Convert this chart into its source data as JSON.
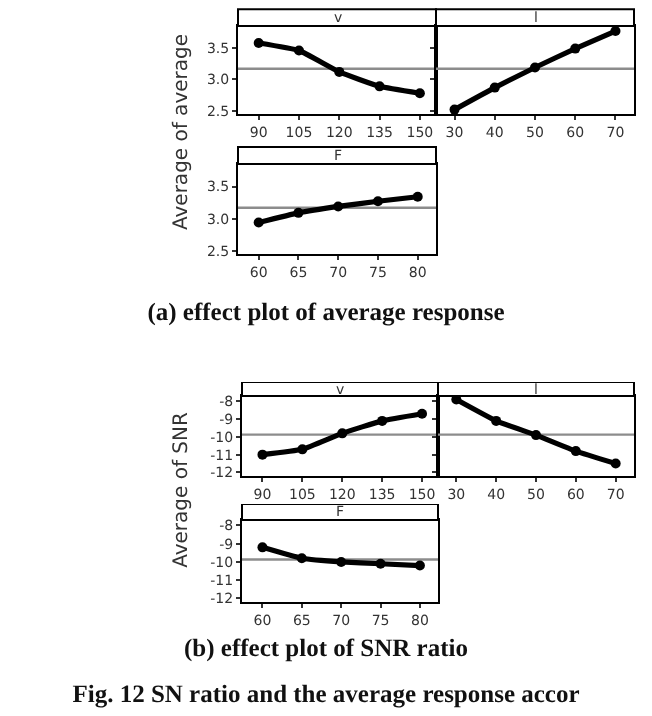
{
  "chart_data": [
    {
      "type": "line",
      "title": "v",
      "ylabel": "Average of average",
      "x": [
        90,
        105,
        120,
        135,
        150
      ],
      "values": [
        3.58,
        3.46,
        3.12,
        2.89,
        2.78
      ],
      "color": "#000000",
      "marker": "circle",
      "xlim": [
        82.3,
        156
      ],
      "xticks": [
        90,
        105,
        120,
        135,
        150
      ],
      "ylim": [
        2.45,
        3.85
      ],
      "yticks": [
        2.5,
        {
          "value": 3,
          "label": "3.0"
        },
        3.5
      ],
      "ref_lines": [
        {
          "axis": "y",
          "value": 3.17,
          "color": "#8c8c8c"
        }
      ]
    },
    {
      "type": "line",
      "title": "l",
      "x": [
        30,
        40,
        50,
        60,
        70
      ],
      "values": [
        2.52,
        2.87,
        3.19,
        3.49,
        3.77
      ],
      "color": "#000000",
      "marker": "circle",
      "xlim": [
        25.4,
        74.6
      ],
      "xticks": [
        30,
        40,
        50,
        60,
        70
      ],
      "ylim": [
        2.45,
        3.85
      ],
      "yticks": [
        2.5,
        3,
        3.5
      ],
      "tick_labels": "x",
      "ref_lines": [
        {
          "axis": "y",
          "value": 3.17,
          "color": "#8c8c8c"
        }
      ]
    },
    {
      "type": "line",
      "title": "F",
      "x": [
        60,
        65,
        70,
        75,
        80
      ],
      "values": [
        2.94,
        3.09,
        3.19,
        3.27,
        3.34
      ],
      "color": "#000000",
      "marker": "circle",
      "xlim": [
        57.4,
        82.3
      ],
      "xticks": [
        60,
        65,
        70,
        75,
        80
      ],
      "ylim": [
        2.45,
        3.85
      ],
      "yticks": [
        2.5,
        {
          "value": 3,
          "label": "3.0"
        },
        3.5
      ],
      "ref_lines": [
        {
          "axis": "y",
          "value": 3.17,
          "color": "#8c8c8c"
        }
      ],
      "annotations": [
        "(a) effect plot of average response"
      ]
    },
    {
      "type": "line",
      "title": "v",
      "ylabel": "Average of SNR",
      "x": [
        90,
        105,
        120,
        135,
        150
      ],
      "values": [
        -11.0,
        -10.7,
        -9.8,
        -9.1,
        -8.7
      ],
      "color": "#000000",
      "marker": "circle",
      "xlim": [
        82.3,
        156
      ],
      "xticks": [
        90,
        105,
        120,
        135,
        150
      ],
      "ylim": [
        -12.2,
        -7.7
      ],
      "yticks": [
        -12,
        -11,
        -10,
        -9,
        -8
      ],
      "ref_lines": [
        {
          "axis": "y",
          "value": -9.87,
          "color": "#8c8c8c"
        }
      ]
    },
    {
      "type": "line",
      "title": "l",
      "x": [
        30,
        40,
        50,
        60,
        70
      ],
      "values": [
        -7.9,
        -9.1,
        -9.9,
        -10.8,
        -11.5
      ],
      "color": "#000000",
      "marker": "circle",
      "xlim": [
        25.4,
        74.6
      ],
      "xticks": [
        30,
        40,
        50,
        60,
        70
      ],
      "ylim": [
        -12.2,
        -7.7
      ],
      "yticks": [
        -12,
        -11,
        -10,
        -9,
        -8
      ],
      "tick_labels": "x",
      "ref_lines": [
        {
          "axis": "y",
          "value": -9.87,
          "color": "#8c8c8c"
        }
      ]
    },
    {
      "type": "line",
      "title": "F",
      "x": [
        60,
        65,
        70,
        75,
        80
      ],
      "values": [
        -9.2,
        -9.8,
        -10.0,
        -10.1,
        -10.2
      ],
      "color": "#000000",
      "marker": "circle",
      "xlim": [
        57.4,
        82.3
      ],
      "xticks": [
        60,
        65,
        70,
        75,
        80
      ],
      "ylim": [
        -12.2,
        -7.7
      ],
      "yticks": [
        -12,
        -11,
        -10,
        -9,
        -8
      ],
      "ref_lines": [
        {
          "axis": "y",
          "value": -9.87,
          "color": "#8c8c8c"
        }
      ],
      "annotations": [
        "(b) effect plot of SNR ratio",
        "Fig. 12 SN ratio and the average response accor"
      ]
    }
  ]
}
